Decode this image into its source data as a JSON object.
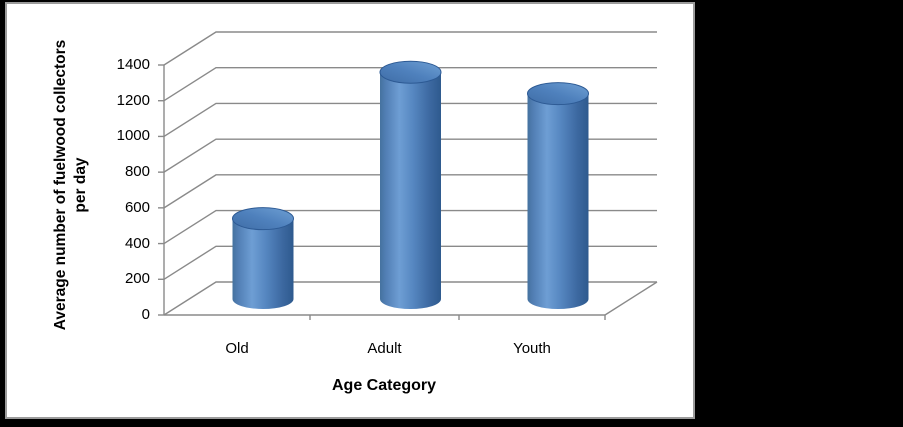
{
  "frame": {
    "background_color": "#000000",
    "panel_background": "#ffffff",
    "panel_border_color": "#9b9b9b"
  },
  "chart_data": {
    "type": "bar",
    "subtype": "3d-cylinder",
    "title": "",
    "xlabel": "Age Category",
    "ylabel": "Average number of fuelwood collectors per day",
    "ylabel_lines": [
      "Average number of fuelwood collectors",
      "per day"
    ],
    "categories": [
      "Old",
      "Adult",
      "Youth"
    ],
    "values": [
      450,
      1270,
      1150
    ],
    "series_count": 1,
    "ylim": [
      0,
      1400
    ],
    "ytick_interval": 200,
    "yticks": [
      "0",
      "200",
      "400",
      "600",
      "800",
      "1000",
      "1200",
      "1400"
    ],
    "grid": true,
    "legend": false,
    "bar_color": "#4f81bd",
    "bar_highlight_color": "#6e9ed4",
    "bar_shadow_color": "#2e5a8e",
    "gridline_color": "#8a8a8a",
    "text_color": "#000000"
  }
}
